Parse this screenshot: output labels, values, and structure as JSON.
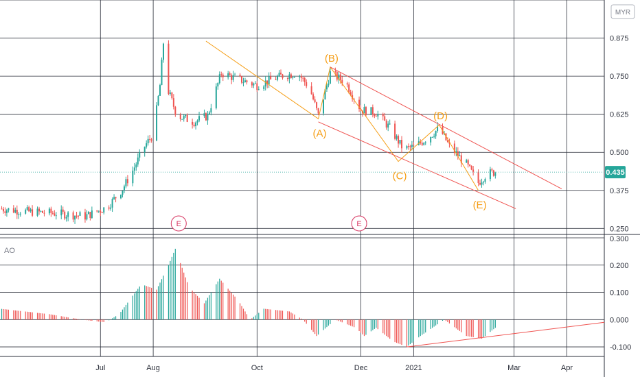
{
  "chart_data": [
    {
      "type": "candlestick",
      "panel": "price",
      "currency": "MYR",
      "last_price": "0.435",
      "ylim": [
        0.235,
        1.0
      ],
      "y_ticks": [
        "0.875",
        "0.750",
        "0.625",
        "0.500",
        "0.375",
        "0.250"
      ],
      "x_labels": [
        "Jul",
        "Aug",
        "Oct",
        "Dec",
        "2021",
        "Mar",
        "Apr"
      ],
      "x_label_dates": [
        "2020-07-01",
        "2020-08-01",
        "2020-10-01",
        "2020-12-01",
        "2021-01-01",
        "2021-03-01",
        "2021-04-01"
      ],
      "x_range": [
        "2020-05-03",
        "2021-04-23"
      ],
      "grid": true,
      "candle_colors": {
        "up": "#26a69a",
        "down": "#ef5350"
      },
      "price_path": [
        [
          "2020-05-03",
          0.315
        ],
        [
          "2020-05-20",
          0.305
        ],
        [
          "2020-06-05",
          0.3
        ],
        [
          "2020-06-22",
          0.29
        ],
        [
          "2020-07-05",
          0.32
        ],
        [
          "2020-07-14",
          0.38
        ],
        [
          "2020-07-20",
          0.44
        ],
        [
          "2020-07-27",
          0.52
        ],
        [
          "2020-08-01",
          0.56
        ],
        [
          "2020-08-05",
          0.72
        ],
        [
          "2020-08-07",
          0.86
        ],
        [
          "2020-08-10",
          0.7
        ],
        [
          "2020-08-15",
          0.62
        ],
        [
          "2020-08-25",
          0.6
        ],
        [
          "2020-09-02",
          0.62
        ],
        [
          "2020-09-10",
          0.76
        ],
        [
          "2020-09-20",
          0.74
        ],
        [
          "2020-10-01",
          0.72
        ],
        [
          "2020-10-15",
          0.75
        ],
        [
          "2020-10-25",
          0.76
        ],
        [
          "2020-11-01",
          0.71
        ],
        [
          "2020-11-06",
          0.62
        ],
        [
          "2020-11-13",
          0.76
        ],
        [
          "2020-11-22",
          0.73
        ],
        [
          "2020-12-01",
          0.64
        ],
        [
          "2020-12-10",
          0.63
        ],
        [
          "2020-12-18",
          0.58
        ],
        [
          "2020-12-26",
          0.51
        ],
        [
          "2021-01-02",
          0.52
        ],
        [
          "2021-01-10",
          0.55
        ],
        [
          "2021-01-16",
          0.58
        ],
        [
          "2021-01-22",
          0.52
        ],
        [
          "2021-02-01",
          0.46
        ],
        [
          "2021-02-08",
          0.4
        ],
        [
          "2021-02-13",
          0.43
        ],
        [
          "2021-02-18",
          0.435
        ]
      ],
      "elliott_waves": [
        {
          "label": "(A)",
          "date": "2020-11-06",
          "price": 0.61
        },
        {
          "label": "(B)",
          "date": "2020-11-13",
          "price": 0.78
        },
        {
          "label": "(C)",
          "date": "2020-12-23",
          "price": 0.47
        },
        {
          "label": "(D)",
          "date": "2021-01-16",
          "price": 0.59
        },
        {
          "label": "(E)",
          "date": "2021-02-08",
          "price": 0.375
        }
      ],
      "wave_path": [
        [
          "2020-09-01",
          0.865
        ],
        [
          "2020-11-06",
          0.61
        ],
        [
          "2020-11-13",
          0.78
        ],
        [
          "2020-12-23",
          0.47
        ],
        [
          "2021-01-16",
          0.59
        ],
        [
          "2021-02-08",
          0.375
        ]
      ],
      "channel_lines": [
        {
          "from": [
            "2020-11-13",
            0.78
          ],
          "to": [
            "2021-03-29",
            0.38
          ]
        },
        {
          "from": [
            "2020-11-06",
            0.6
          ],
          "to": [
            "2021-03-02",
            0.315
          ]
        }
      ],
      "events": [
        {
          "label": "E",
          "date": "2020-08-16"
        },
        {
          "label": "E",
          "date": "2020-11-30"
        }
      ]
    },
    {
      "type": "bar",
      "panel": "indicator",
      "name": "AO",
      "ylim": [
        -0.135,
        0.305
      ],
      "y_ticks": [
        "0.300",
        "0.200",
        "0.100",
        "0.000",
        "-0.100"
      ],
      "bar_colors": {
        "rising": "#26a69a",
        "falling": "#ef5350"
      },
      "ao_path": [
        [
          "2020-05-03",
          0.04
        ],
        [
          "2020-06-01",
          0.02
        ],
        [
          "2020-06-20",
          0.0
        ],
        [
          "2020-07-04",
          -0.01
        ],
        [
          "2020-07-12",
          0.02
        ],
        [
          "2020-07-25",
          0.13
        ],
        [
          "2020-08-03",
          0.11
        ],
        [
          "2020-08-10",
          0.2
        ],
        [
          "2020-08-14",
          0.26
        ],
        [
          "2020-08-22",
          0.12
        ],
        [
          "2020-08-31",
          0.06
        ],
        [
          "2020-09-09",
          0.15
        ],
        [
          "2020-09-20",
          0.07
        ],
        [
          "2020-09-27",
          0.0
        ],
        [
          "2020-10-05",
          0.04
        ],
        [
          "2020-10-20",
          0.03
        ],
        [
          "2020-10-28",
          0.0
        ],
        [
          "2020-11-05",
          -0.06
        ],
        [
          "2020-11-16",
          0.0
        ],
        [
          "2020-11-28",
          -0.03
        ],
        [
          "2020-12-03",
          -0.06
        ],
        [
          "2020-12-10",
          -0.03
        ],
        [
          "2020-12-20",
          -0.08
        ],
        [
          "2020-12-28",
          -0.1
        ],
        [
          "2021-01-05",
          -0.06
        ],
        [
          "2021-01-19",
          0.0
        ],
        [
          "2021-02-01",
          -0.06
        ],
        [
          "2021-02-10",
          -0.07
        ],
        [
          "2021-02-18",
          -0.03
        ]
      ],
      "trend_line": {
        "from": [
          "2020-12-28",
          -0.1
        ],
        "to": [
          "2021-04-23",
          -0.01
        ]
      }
    }
  ]
}
